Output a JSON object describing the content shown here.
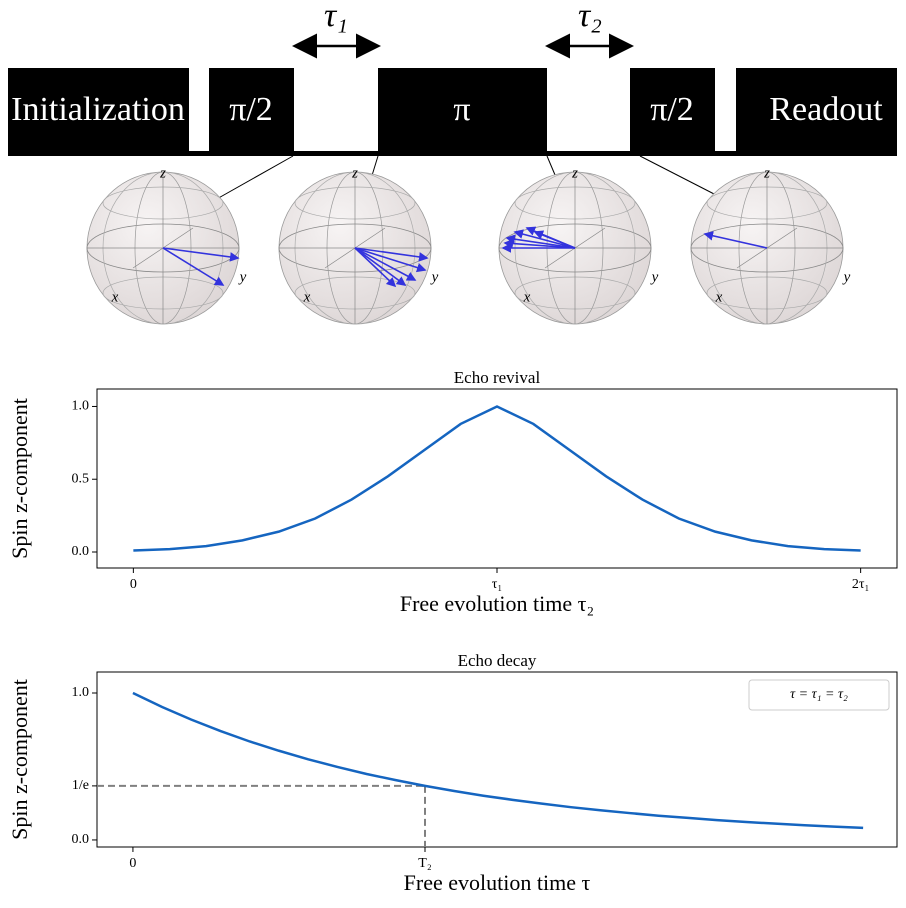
{
  "diagram": {
    "pulses": [
      "Initialization",
      "π/2",
      "π",
      "π/2",
      "Readout"
    ],
    "delays": [
      "τ₁",
      "τ₂"
    ],
    "spheres": [
      {
        "axes": [
          "x",
          "y",
          "z"
        ]
      },
      {
        "axes": [
          "x",
          "y",
          "z"
        ]
      },
      {
        "axes": [
          "x",
          "y",
          "z"
        ]
      },
      {
        "axes": [
          "x",
          "y",
          "z"
        ]
      }
    ]
  },
  "chart_data": [
    {
      "type": "line",
      "title": "Echo revival",
      "xlabel": "Free evolution time τ₂",
      "ylabel": "Spin z-component",
      "x": [
        0,
        0.1,
        0.2,
        0.3,
        0.4,
        0.5,
        0.6,
        0.7,
        0.8,
        0.9,
        1.0,
        1.1,
        1.2,
        1.3,
        1.4,
        1.5,
        1.6,
        1.7,
        1.8,
        1.9,
        2.0
      ],
      "values": [
        0.01,
        0.02,
        0.04,
        0.08,
        0.14,
        0.23,
        0.36,
        0.52,
        0.7,
        0.88,
        1.0,
        0.88,
        0.7,
        0.52,
        0.36,
        0.23,
        0.14,
        0.08,
        0.04,
        0.02,
        0.01
      ],
      "color": "#1565c0",
      "xlim": [
        -0.1,
        2.1
      ],
      "ylim": [
        -0.11,
        1.12
      ],
      "xticks": [
        0,
        {
          "value": 1,
          "label": "τ₁"
        },
        {
          "value": 2,
          "label": "2τ₁"
        }
      ],
      "yticks": [
        {
          "value": 0,
          "label": "0.0"
        },
        {
          "value": 0.5,
          "label": "0.5"
        },
        {
          "value": 1,
          "label": "1.0"
        }
      ]
    },
    {
      "type": "line",
      "title": "Echo decay",
      "xlabel": "Free evolution time τ",
      "ylabel": "Spin z-component",
      "x": [
        0,
        0.1,
        0.2,
        0.3,
        0.4,
        0.5,
        0.6,
        0.7,
        0.8,
        0.9,
        1.0,
        1.1,
        1.2,
        1.3,
        1.4,
        1.5,
        1.6,
        1.7,
        1.8,
        1.9,
        2.0,
        2.1,
        2.2,
        2.3,
        2.4,
        2.5
      ],
      "series": [
        {
          "name": "τ = τ₁ = τ₂",
          "color": "#1565c0",
          "values": [
            1,
            0.905,
            0.819,
            0.741,
            0.67,
            0.607,
            0.549,
            0.497,
            0.449,
            0.407,
            0.368,
            0.333,
            0.301,
            0.273,
            0.247,
            0.223,
            0.202,
            0.183,
            0.165,
            0.15,
            0.135,
            0.122,
            0.111,
            0.1,
            0.091,
            0.082
          ]
        }
      ],
      "legend": "upper right",
      "reference": {
        "x": 1,
        "y": 0.3679,
        "color": "#808080"
      },
      "xlim": [
        -0.123,
        2.616
      ],
      "ylim": [
        -0.048,
        1.143
      ],
      "xticks": [
        0,
        {
          "value": 1,
          "label": "T₂"
        }
      ],
      "yticks": [
        {
          "value": 0,
          "label": "0.0"
        },
        {
          "value": 0.3679,
          "label": "1/e"
        },
        {
          "value": 1,
          "label": "1.0"
        }
      ]
    }
  ]
}
